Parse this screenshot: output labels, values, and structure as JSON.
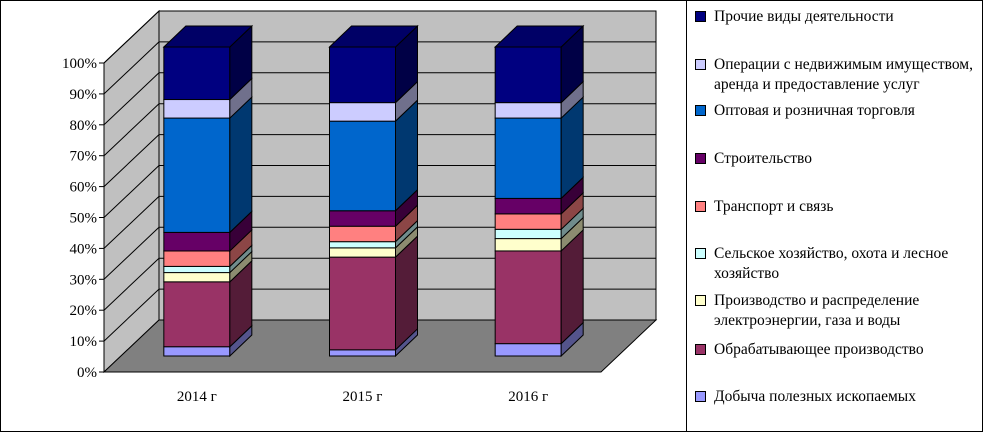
{
  "chart_data": {
    "type": "bar",
    "stacked": true,
    "three_d": true,
    "categories": [
      "2014 г",
      "2015 г",
      "2016 г"
    ],
    "y_ticks": [
      "0%",
      "10%",
      "20%",
      "30%",
      "40%",
      "50%",
      "60%",
      "70%",
      "80%",
      "90%",
      "100%"
    ],
    "ylim": [
      0,
      100
    ],
    "grid": true,
    "legend_position": "right",
    "series": [
      {
        "name": "Добыча полезных ископаемых",
        "color": "#9999ff",
        "values": [
          3,
          2,
          4
        ]
      },
      {
        "name": "Обрабатывающее производство",
        "color": "#993366",
        "values": [
          21,
          30,
          30
        ]
      },
      {
        "name": "Производство и распределение электроэнергии, газа и воды",
        "color": "#ffffcc",
        "values": [
          3,
          3,
          4
        ]
      },
      {
        "name": "Сельское хозяйство, охота и лесное хозяйство",
        "color": "#ccffff",
        "values": [
          2,
          2,
          3
        ]
      },
      {
        "name": "Транспорт и связь",
        "color": "#ff8080",
        "values": [
          5,
          5,
          5
        ]
      },
      {
        "name": "Строительство",
        "color": "#660066",
        "values": [
          6,
          5,
          5
        ]
      },
      {
        "name": "Оптовая и розничная торговля",
        "color": "#0066cc",
        "values": [
          37,
          29,
          26
        ]
      },
      {
        "name": "Операции с недвижимым имуществом, аренда и предоставление услуг",
        "color": "#ccccff",
        "values": [
          6,
          6,
          5
        ]
      },
      {
        "name": "Прочие виды деятельности",
        "color": "#000080",
        "values": [
          17,
          18,
          18
        ]
      }
    ]
  }
}
